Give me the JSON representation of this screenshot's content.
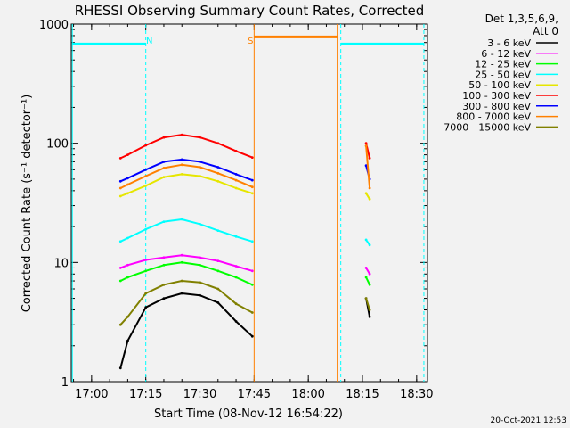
{
  "chart_data": {
    "type": "line",
    "title": "RHESSI Observing Summary Count Rates, Corrected",
    "xlabel": "Start Time (08-Nov-12 16:54:22)",
    "ylabel": "Corrected Count Rate (s⁻¹ detector⁻¹)",
    "y_scale": "log",
    "ylim": [
      1,
      1000
    ],
    "xlim": [
      "16:54:22",
      "18:33:00"
    ],
    "x_ticks": [
      "17:00",
      "17:15",
      "17:30",
      "17:45",
      "18:00",
      "18:15",
      "18:30"
    ],
    "y_ticks": [
      "1",
      "10",
      "100",
      "1000"
    ],
    "grid": false,
    "legend_placement": "top-right",
    "legend_title": [
      "Det 1,3,5,6,9,",
      "Att 0"
    ],
    "series": [
      {
        "name": "3 - 6 keV",
        "color": "#000000",
        "x": [
          "17:08",
          "17:10",
          "17:15",
          "17:20",
          "17:25",
          "17:30",
          "17:35",
          "17:40",
          "17:44:30",
          "18:16",
          "18:17"
        ],
        "values": [
          1.3,
          2.2,
          4.2,
          5.0,
          5.5,
          5.3,
          4.6,
          3.2,
          2.4,
          5.0,
          3.5
        ]
      },
      {
        "name": "6 - 12 keV",
        "color": "#ff00ff",
        "x": [
          "17:08",
          "17:10",
          "17:15",
          "17:20",
          "17:25",
          "17:30",
          "17:35",
          "17:40",
          "17:44:30",
          "18:16",
          "18:17"
        ],
        "values": [
          9.0,
          9.5,
          10.5,
          11.0,
          11.5,
          11.0,
          10.3,
          9.3,
          8.5,
          9.0,
          8.0
        ]
      },
      {
        "name": "12 - 25 keV",
        "color": "#00ff00",
        "x": [
          "17:08",
          "17:10",
          "17:15",
          "17:20",
          "17:25",
          "17:30",
          "17:35",
          "17:40",
          "17:44:30",
          "18:16",
          "18:17"
        ],
        "values": [
          7.0,
          7.5,
          8.5,
          9.5,
          10.0,
          9.5,
          8.5,
          7.5,
          6.5,
          7.5,
          6.5
        ]
      },
      {
        "name": "25 - 50 keV",
        "color": "#00ffff",
        "x": [
          "17:08",
          "17:10",
          "17:15",
          "17:20",
          "17:25",
          "17:30",
          "17:35",
          "17:40",
          "17:44:30",
          "18:16",
          "18:17"
        ],
        "values": [
          15.0,
          16.0,
          19.0,
          22.0,
          23.0,
          21.0,
          18.5,
          16.5,
          15.0,
          15.5,
          14.0
        ]
      },
      {
        "name": "50 - 100 keV",
        "color": "#e6e600",
        "x": [
          "17:08",
          "17:10",
          "17:15",
          "17:20",
          "17:25",
          "17:30",
          "17:35",
          "17:40",
          "17:44:30",
          "18:16",
          "18:17"
        ],
        "values": [
          36.0,
          38.0,
          44.0,
          52.0,
          55.0,
          53.0,
          48.0,
          42.0,
          38.0,
          38.0,
          34.0
        ]
      },
      {
        "name": "100 - 300 keV",
        "color": "#ff0000",
        "x": [
          "17:08",
          "17:10",
          "17:15",
          "17:20",
          "17:25",
          "17:30",
          "17:35",
          "17:40",
          "17:44:30",
          "18:16",
          "18:17"
        ],
        "values": [
          75.0,
          80.0,
          96.0,
          112.0,
          118.0,
          112.0,
          100.0,
          86.0,
          76.0,
          100.0,
          75.0
        ]
      },
      {
        "name": "300 - 800 keV",
        "color": "#0000ff",
        "x": [
          "17:08",
          "17:10",
          "17:15",
          "17:20",
          "17:25",
          "17:30",
          "17:35",
          "17:40",
          "17:44:30",
          "18:16",
          "18:17"
        ],
        "values": [
          48.0,
          51.0,
          60.0,
          70.0,
          73.0,
          70.0,
          63.0,
          55.0,
          49.0,
          65.0,
          50.0
        ]
      },
      {
        "name": "800 - 7000 keV",
        "color": "#ff8000",
        "x": [
          "17:08",
          "17:10",
          "17:15",
          "17:20",
          "17:25",
          "17:30",
          "17:35",
          "17:40",
          "17:44:30",
          "18:16",
          "18:17"
        ],
        "values": [
          42.0,
          45.0,
          53.0,
          62.0,
          66.0,
          63.0,
          56.0,
          49.0,
          43.0,
          95.0,
          42.0
        ]
      },
      {
        "name": "7000 - 15000 keV",
        "color": "#808000",
        "x": [
          "17:08",
          "17:10",
          "17:15",
          "17:20",
          "17:25",
          "17:30",
          "17:35",
          "17:40",
          "17:44:30",
          "18:16",
          "18:17"
        ],
        "values": [
          3.0,
          3.5,
          5.5,
          6.5,
          7.0,
          6.8,
          6.0,
          4.5,
          3.8,
          5.0,
          4.0
        ]
      }
    ],
    "annotations": [
      {
        "text": "N",
        "x": "17:16",
        "color": "#00ffff"
      },
      {
        "text": "S",
        "x": "17:44",
        "color": "#ff8000"
      }
    ]
  },
  "footer": {
    "date_stamp": "20-Oct-2021 12:53"
  }
}
